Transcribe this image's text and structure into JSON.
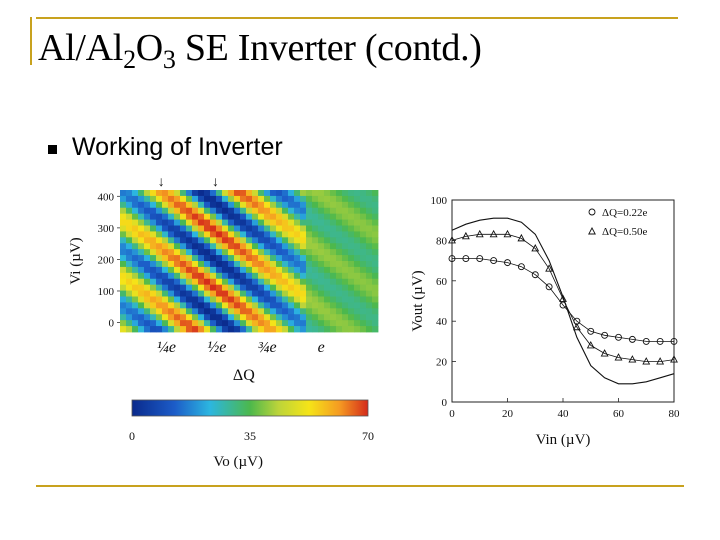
{
  "slide": {
    "title_main": "Al/Al",
    "title_sub1": "2",
    "title_mid": "O",
    "title_sub2": "3",
    "title_rest": " SE Inverter (contd.)",
    "bullet": "Working of Inverter"
  },
  "colors": {
    "frame": "#c8a21e"
  },
  "chart_data": [
    {
      "type": "heatmap",
      "xlabel": "ΔQ",
      "ylabel": "Vi (µV)",
      "x_ticks": [
        "¼e",
        "½e",
        "¾e",
        "e"
      ],
      "y_ticks": [
        "400",
        "300",
        "200",
        "100",
        "0"
      ],
      "ylim": [
        -30,
        420
      ],
      "markers": [
        "↓",
        "↓"
      ],
      "colorbar": {
        "ticks": [
          "0",
          "35",
          "70"
        ],
        "label": "Vo (µV)",
        "range": [
          0,
          70
        ]
      }
    },
    {
      "type": "line",
      "xlabel": "Vin (µV)",
      "ylabel": "Vout (µV)",
      "xlim": [
        0,
        80
      ],
      "ylim": [
        0,
        100
      ],
      "x_ticks": [
        "0",
        "20",
        "40",
        "60",
        "80"
      ],
      "y_ticks": [
        "100",
        "80",
        "60",
        "40",
        "20",
        "0"
      ],
      "legend_position": "top-right",
      "series": [
        {
          "name": "ΔQ=0.22e",
          "marker": "circle",
          "x": [
            0,
            5,
            10,
            15,
            20,
            25,
            30,
            35,
            40,
            45,
            50,
            55,
            60,
            65,
            70,
            75,
            80
          ],
          "y": [
            71,
            71,
            71,
            70,
            69,
            67,
            63,
            57,
            48,
            40,
            35,
            33,
            32,
            31,
            30,
            30,
            30
          ]
        },
        {
          "name": "ΔQ=0.50e",
          "marker": "triangle",
          "x": [
            0,
            5,
            10,
            15,
            20,
            25,
            30,
            35,
            40,
            45,
            50,
            55,
            60,
            65,
            70,
            75,
            80
          ],
          "y": [
            80,
            82,
            83,
            83,
            83,
            81,
            76,
            66,
            51,
            37,
            28,
            24,
            22,
            21,
            20,
            20,
            21
          ]
        },
        {
          "name": "",
          "marker": "none",
          "x": [
            0,
            5,
            10,
            15,
            20,
            25,
            30,
            35,
            40,
            45,
            50,
            55,
            60,
            65,
            70,
            75,
            80
          ],
          "y": [
            85,
            88,
            90,
            91,
            91,
            89,
            83,
            70,
            52,
            32,
            18,
            12,
            9,
            9,
            10,
            12,
            14
          ]
        }
      ]
    }
  ]
}
